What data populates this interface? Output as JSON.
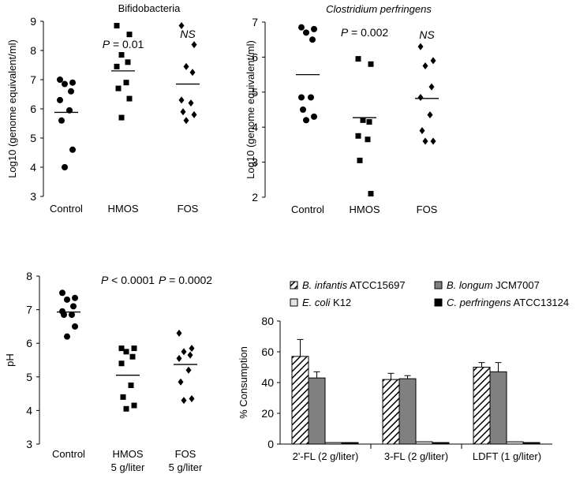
{
  "chart_data": [
    {
      "type": "scatter",
      "title": "Bifidobacteria",
      "title_italic": false,
      "xlabel": "",
      "ylabel": "Log10 (genome equivalent/ml)",
      "ylim": [
        3,
        9
      ],
      "yticks": [
        3,
        4,
        5,
        6,
        7,
        8,
        9
      ],
      "groups": [
        {
          "label": "Control",
          "label2": "",
          "marker": "circle",
          "values": [
            7.0,
            6.9,
            6.85,
            6.6,
            6.3,
            5.95,
            5.6,
            4.6,
            4.0
          ],
          "mean": 5.88
        },
        {
          "label": "HMOS",
          "label2": "",
          "marker": "square",
          "values": [
            8.85,
            8.55,
            7.85,
            7.6,
            7.45,
            6.9,
            6.7,
            6.35,
            5.7
          ],
          "mean": 7.3,
          "annotation": "P = 0.01"
        },
        {
          "label": "FOS",
          "label2": "",
          "marker": "diamond",
          "values": [
            8.85,
            8.2,
            7.45,
            7.25,
            6.3,
            6.2,
            5.9,
            5.8,
            5.6
          ],
          "mean": 6.85,
          "annotation": "NS"
        }
      ]
    },
    {
      "type": "scatter",
      "title": "Clostridium perfringens",
      "title_italic": true,
      "xlabel": "",
      "ylabel": "Log10 (genome equivalent/ml)",
      "ylim": [
        2,
        7
      ],
      "yticks": [
        2,
        3,
        4,
        5,
        6,
        7
      ],
      "groups": [
        {
          "label": "Control",
          "label2": "",
          "marker": "circle",
          "values": [
            6.85,
            6.8,
            6.7,
            6.5,
            4.85,
            4.85,
            4.5,
            4.3,
            4.2
          ],
          "mean": 5.5
        },
        {
          "label": "HMOS",
          "label2": "",
          "marker": "square",
          "values": [
            5.95,
            5.8,
            4.2,
            4.15,
            3.75,
            3.65,
            3.05,
            2.1
          ],
          "mean": 4.27,
          "annotation": "P = 0.002"
        },
        {
          "label": "FOS",
          "label2": "",
          "marker": "diamond",
          "values": [
            6.3,
            5.9,
            5.75,
            5.15,
            4.85,
            4.35,
            3.9,
            3.6,
            3.6
          ],
          "mean": 4.82,
          "annotation": "NS"
        }
      ]
    },
    {
      "type": "scatter",
      "title": "",
      "title_italic": false,
      "xlabel": "",
      "ylabel": "pH",
      "ylim": [
        3,
        8
      ],
      "yticks": [
        3,
        4,
        5,
        6,
        7,
        8
      ],
      "groups": [
        {
          "label": "Control",
          "label2": "",
          "marker": "circle",
          "values": [
            7.5,
            7.35,
            7.3,
            7.1,
            6.95,
            6.85,
            6.85,
            6.5,
            6.2
          ],
          "mean": 6.93
        },
        {
          "label": "HMOS",
          "label2": "5 g/liter",
          "marker": "square",
          "values": [
            5.85,
            5.85,
            5.75,
            5.6,
            5.4,
            4.75,
            4.4,
            4.15,
            4.05
          ],
          "mean": 5.05,
          "annotation": "P < 0.0001"
        },
        {
          "label": "FOS",
          "label2": "5 g/liter",
          "marker": "diamond",
          "values": [
            6.3,
            5.85,
            5.75,
            5.65,
            5.55,
            5.2,
            4.85,
            4.35,
            4.3
          ],
          "mean": 5.37,
          "annotation": "P = 0.0002"
        }
      ]
    },
    {
      "type": "bar",
      "title": "",
      "xlabel": "",
      "ylabel": "% Consumption",
      "ylim": [
        0,
        80
      ],
      "yticks": [
        0,
        20,
        40,
        60,
        80
      ],
      "categories": [
        "2'-FL (2 g/liter)",
        "3-FL (2 g/liter)",
        "LDFT (1 g/liter)"
      ],
      "series": [
        {
          "name": "B. infantis",
          "strain": "ATCC15697",
          "fill": "hatch",
          "values": [
            57,
            42,
            50
          ],
          "errors": [
            11,
            4,
            3
          ]
        },
        {
          "name": "B. longum",
          "strain": "JCM7007",
          "fill": "#808080",
          "values": [
            43,
            42.5,
            47
          ],
          "errors": [
            4,
            2,
            6
          ]
        },
        {
          "name": "E. coli",
          "strain": "K12",
          "fill": "#e4e4e4",
          "values": [
            1,
            1.5,
            1.5
          ],
          "errors": [
            0.3,
            0.3,
            0.3
          ]
        },
        {
          "name": "C. perfringens",
          "strain": "ATCC13124",
          "fill": "#000000",
          "values": [
            1,
            1,
            1
          ],
          "errors": [
            0.3,
            0.3,
            0.3
          ]
        }
      ]
    }
  ]
}
